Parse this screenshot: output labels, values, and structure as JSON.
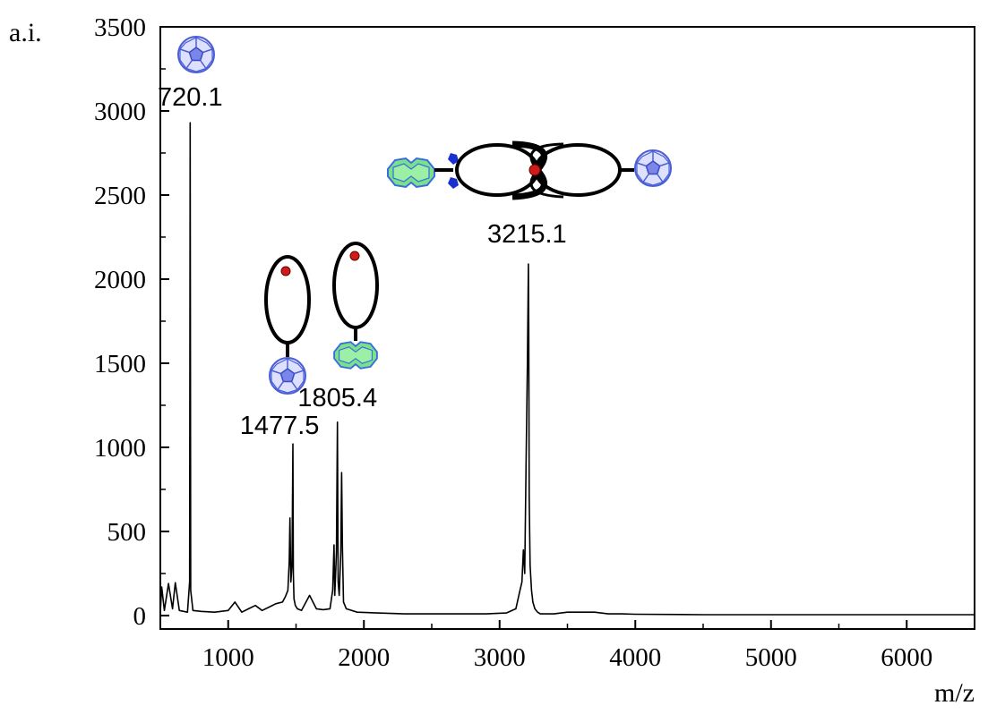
{
  "chart_data": {
    "type": "line",
    "xlabel": "m/z",
    "ylabel": "a.i.",
    "xlim": [
      500,
      6500
    ],
    "ylim": [
      -80,
      3500
    ],
    "x_ticks": [
      1000,
      2000,
      3000,
      4000,
      5000,
      6000
    ],
    "y_ticks": [
      0,
      500,
      1000,
      1500,
      2000,
      2500,
      3000,
      3500
    ],
    "grid": false,
    "colors": {
      "spectrum": "#000000",
      "fullerene": "#4a5fd6",
      "porphyrin": "#7be08a",
      "guest": "#d11a1a",
      "stopper": "#1a2fd0"
    },
    "peaks": [
      {
        "x": 720.1,
        "y": 2930,
        "label": "720.1",
        "icon": "fullerene-icon"
      },
      {
        "x": 1477.5,
        "y": 1020,
        "label": "1477.5",
        "icon": "macrocycle-fullerene-icon"
      },
      {
        "x": 1805.4,
        "y": 1150,
        "label": "1805.4",
        "icon": "macrocycle-porphyrin-icon"
      },
      {
        "x": 3215.1,
        "y": 2090,
        "label": "3215.1",
        "icon": "catenane-icon"
      }
    ],
    "series": [
      {
        "x": [
          500,
          510,
          530,
          560,
          590,
          610,
          640,
          700,
          716,
          720,
          724,
          740,
          800,
          900,
          1000,
          1050,
          1100,
          1150,
          1200,
          1250,
          1300,
          1350,
          1400,
          1420,
          1440,
          1450,
          1455,
          1462,
          1470,
          1477,
          1480,
          1485,
          1495,
          1510,
          1540,
          1600,
          1650,
          1700,
          1750,
          1770,
          1780,
          1785,
          1792,
          1798,
          1805,
          1810,
          1818,
          1830,
          1836,
          1842,
          1850,
          1870,
          1950,
          2100,
          2300,
          2600,
          2900,
          3050,
          3120,
          3150,
          3165,
          3175,
          3185,
          3195,
          3205,
          3212,
          3215,
          3218,
          3225,
          3235,
          3245,
          3260,
          3280,
          3300,
          3400,
          3500,
          3700,
          3800,
          3900,
          4000,
          4500,
          5000,
          5500,
          6000,
          6500
        ],
        "y": [
          20,
          170,
          30,
          190,
          40,
          195,
          30,
          20,
          200,
          2930,
          150,
          30,
          25,
          20,
          30,
          80,
          20,
          40,
          60,
          30,
          50,
          70,
          80,
          110,
          150,
          320,
          580,
          200,
          300,
          1020,
          250,
          100,
          60,
          40,
          30,
          120,
          40,
          35,
          40,
          150,
          420,
          120,
          250,
          380,
          1150,
          200,
          120,
          380,
          850,
          400,
          80,
          40,
          20,
          15,
          10,
          10,
          10,
          15,
          40,
          150,
          200,
          390,
          250,
          900,
          1500,
          2090,
          1700,
          700,
          300,
          150,
          80,
          40,
          20,
          10,
          10,
          20,
          20,
          10,
          10,
          8,
          5,
          5,
          5,
          5,
          5
        ]
      }
    ]
  }
}
